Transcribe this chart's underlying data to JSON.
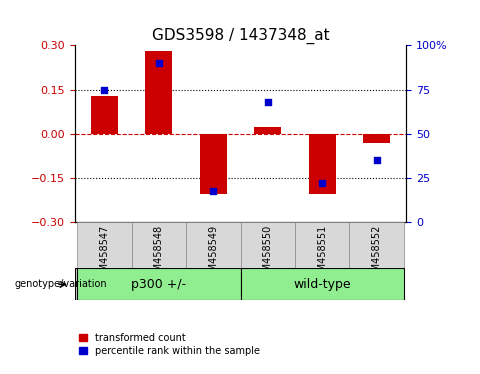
{
  "title": "GDS3598 / 1437348_at",
  "samples": [
    "GSM458547",
    "GSM458548",
    "GSM458549",
    "GSM458550",
    "GSM458551",
    "GSM458552"
  ],
  "red_values": [
    0.13,
    0.28,
    -0.205,
    0.025,
    -0.205,
    -0.03
  ],
  "blue_values": [
    75,
    90,
    18,
    68,
    22,
    35
  ],
  "group_label": "genotype/variation",
  "groups": [
    {
      "label": "p300 +/-",
      "start": 0,
      "end": 2,
      "color": "#90EE90"
    },
    {
      "label": "wild-type",
      "start": 3,
      "end": 5,
      "color": "#90EE90"
    }
  ],
  "ylim_left": [
    -0.3,
    0.3
  ],
  "ylim_right": [
    0,
    100
  ],
  "yticks_left": [
    -0.3,
    -0.15,
    0,
    0.15,
    0.3
  ],
  "yticks_right": [
    0,
    25,
    50,
    75,
    100
  ],
  "hline_dotted": [
    -0.15,
    0.15
  ],
  "red_color": "#CC0000",
  "blue_color": "#0000CC",
  "bar_width": 0.5,
  "legend_red": "transformed count",
  "legend_blue": "percentile rank within the sample",
  "title_fontsize": 11,
  "tick_fontsize": 8,
  "sample_fontsize": 7,
  "group_fontsize": 9,
  "legend_fontsize": 7
}
